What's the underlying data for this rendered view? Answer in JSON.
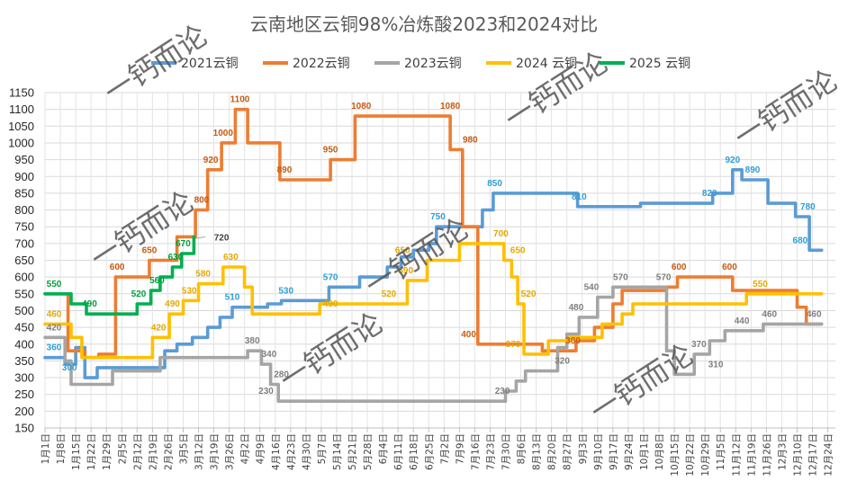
{
  "chart_data": {
    "type": "line",
    "title": "云南地区云铜98%冶炼酸2023和2024对比",
    "ylim": [
      150,
      1150
    ],
    "yticks": [
      150,
      200,
      250,
      300,
      350,
      400,
      450,
      500,
      550,
      600,
      650,
      700,
      750,
      800,
      850,
      900,
      950,
      1000,
      1050,
      1100,
      1150
    ],
    "grid": true,
    "legend_position": "top",
    "x_ticks": [
      "1月1日",
      "1月8日",
      "1月15日",
      "1月22日",
      "1月29日",
      "2月5日",
      "2月12日",
      "2月19日",
      "2月26日",
      "3月5日",
      "3月12日",
      "3月19日",
      "3月26日",
      "4月2日",
      "4月9日",
      "4月16日",
      "4月23日",
      "4月30日",
      "5月7日",
      "5月14日",
      "5月21日",
      "5月28日",
      "6月4日",
      "6月11日",
      "6月18日",
      "6月25日",
      "7月2日",
      "7月9日",
      "7月16日",
      "7月23日",
      "7月30日",
      "8月6日",
      "8月13日",
      "8月20日",
      "8月27日",
      "9月3日",
      "9月10日",
      "9月17日",
      "9月24日",
      "10月1日",
      "10月8日",
      "10月15日",
      "10月22日",
      "10月29日",
      "11月5日",
      "11月12日",
      "11月19日",
      "11月26日",
      "12月3日",
      "12月10日",
      "12月17日",
      "12月24日"
    ],
    "series": [
      {
        "name": "2021云铜",
        "color": "#5B9BD5",
        "points": [
          [
            0,
            360
          ],
          [
            1.3,
            360
          ],
          [
            1.3,
            340
          ],
          [
            2,
            340
          ],
          [
            2,
            390
          ],
          [
            2.6,
            390
          ],
          [
            2.6,
            300
          ],
          [
            3.4,
            300
          ],
          [
            3.4,
            330
          ],
          [
            7.8,
            330
          ],
          [
            7.8,
            380
          ],
          [
            8.6,
            380
          ],
          [
            8.6,
            400
          ],
          [
            9.6,
            400
          ],
          [
            9.6,
            420
          ],
          [
            10.6,
            420
          ],
          [
            10.6,
            450
          ],
          [
            11.4,
            450
          ],
          [
            11.4,
            480
          ],
          [
            12.2,
            480
          ],
          [
            12.2,
            510
          ],
          [
            14.5,
            510
          ],
          [
            14.5,
            520
          ],
          [
            15.4,
            520
          ],
          [
            15.4,
            530
          ],
          [
            18.5,
            530
          ],
          [
            18.5,
            570
          ],
          [
            20.5,
            570
          ],
          [
            20.5,
            600
          ],
          [
            22.3,
            600
          ],
          [
            22.3,
            630
          ],
          [
            23.2,
            630
          ],
          [
            23.2,
            660
          ],
          [
            24,
            660
          ],
          [
            24,
            680
          ],
          [
            25,
            680
          ],
          [
            25,
            700
          ],
          [
            25.5,
            700
          ],
          [
            25.5,
            750
          ],
          [
            28.5,
            750
          ],
          [
            28.5,
            800
          ],
          [
            29.2,
            800
          ],
          [
            29.2,
            850
          ],
          [
            34.7,
            850
          ],
          [
            34.7,
            810
          ],
          [
            38.8,
            810
          ],
          [
            38.8,
            820
          ],
          [
            43.5,
            820
          ],
          [
            43.5,
            850
          ],
          [
            44.8,
            850
          ],
          [
            44.8,
            920
          ],
          [
            45.4,
            920
          ],
          [
            45.4,
            890
          ],
          [
            47.1,
            890
          ],
          [
            47.1,
            820
          ],
          [
            48.9,
            820
          ],
          [
            48.9,
            780
          ],
          [
            49.8,
            780
          ],
          [
            49.8,
            680
          ],
          [
            50.6,
            680
          ]
        ],
        "labels": [
          {
            "i": 0,
            "v": 360
          },
          {
            "i": 1.6,
            "v": 300
          },
          {
            "i": 12.2,
            "v": 510
          },
          {
            "i": 15.7,
            "v": 530
          },
          {
            "i": 18.6,
            "v": 570
          },
          {
            "i": 25.6,
            "v": 750
          },
          {
            "i": 29.3,
            "v": 850
          },
          {
            "i": 34.8,
            "v": 810
          },
          {
            "i": 43.3,
            "v": 820
          },
          {
            "i": 44.8,
            "v": 920
          },
          {
            "i": 46.1,
            "v": 890
          },
          {
            "i": 49.7,
            "v": 780
          },
          {
            "i": 49.2,
            "v": 680
          }
        ]
      },
      {
        "name": "2022云铜",
        "color": "#ED7D31",
        "points": [
          [
            0,
            550
          ],
          [
            1.5,
            550
          ],
          [
            1.5,
            380
          ],
          [
            2.6,
            380
          ],
          [
            2.6,
            360
          ],
          [
            3.5,
            360
          ],
          [
            3.5,
            370
          ],
          [
            4.6,
            370
          ],
          [
            4.6,
            600
          ],
          [
            6.8,
            600
          ],
          [
            6.8,
            650
          ],
          [
            8.6,
            650
          ],
          [
            8.6,
            720
          ],
          [
            9.8,
            720
          ],
          [
            9.8,
            800
          ],
          [
            10.6,
            800
          ],
          [
            10.6,
            920
          ],
          [
            11.5,
            920
          ],
          [
            11.5,
            1000
          ],
          [
            12.4,
            1000
          ],
          [
            12.4,
            1100
          ],
          [
            13.2,
            1100
          ],
          [
            13.2,
            1000
          ],
          [
            15.3,
            1000
          ],
          [
            15.3,
            890
          ],
          [
            18.6,
            890
          ],
          [
            18.6,
            950
          ],
          [
            20.2,
            950
          ],
          [
            20.2,
            1080
          ],
          [
            26.4,
            1080
          ],
          [
            26.4,
            980
          ],
          [
            27.2,
            980
          ],
          [
            27.2,
            750
          ],
          [
            28.2,
            750
          ],
          [
            28.2,
            400
          ],
          [
            32.4,
            400
          ],
          [
            32.4,
            380
          ],
          [
            34.6,
            380
          ],
          [
            34.6,
            410
          ],
          [
            35.8,
            410
          ],
          [
            35.8,
            450
          ],
          [
            37,
            450
          ],
          [
            37,
            520
          ],
          [
            37.6,
            520
          ],
          [
            37.6,
            560
          ],
          [
            40.5,
            560
          ],
          [
            40.5,
            570
          ],
          [
            41.2,
            570
          ],
          [
            41.2,
            600
          ],
          [
            44.8,
            600
          ],
          [
            44.8,
            560
          ],
          [
            49,
            560
          ],
          [
            49,
            510
          ],
          [
            49.6,
            510
          ],
          [
            49.6,
            460
          ],
          [
            50.6,
            460
          ]
        ],
        "labels": [
          {
            "i": 4.7,
            "v": 600
          },
          {
            "i": 6.8,
            "v": 650
          },
          {
            "i": 10.2,
            "v": 800
          },
          {
            "i": 10.8,
            "v": 920
          },
          {
            "i": 11.6,
            "v": 1000
          },
          {
            "i": 12.7,
            "v": 1100
          },
          {
            "i": 15.6,
            "v": 890
          },
          {
            "i": 18.6,
            "v": 950
          },
          {
            "i": 20.6,
            "v": 1080
          },
          {
            "i": 26.4,
            "v": 1080
          },
          {
            "i": 27.7,
            "v": 980
          },
          {
            "i": 27.6,
            "v": 400
          },
          {
            "i": 34.4,
            "v": 380
          },
          {
            "i": 41.3,
            "v": 600
          },
          {
            "i": 44.6,
            "v": 600
          }
        ]
      },
      {
        "name": "2023云铜",
        "color": "#A5A5A5",
        "points": [
          [
            0,
            420
          ],
          [
            1.3,
            420
          ],
          [
            1.3,
            350
          ],
          [
            1.7,
            350
          ],
          [
            1.7,
            280
          ],
          [
            4.4,
            280
          ],
          [
            4.4,
            320
          ],
          [
            7.5,
            320
          ],
          [
            7.5,
            360
          ],
          [
            13.2,
            360
          ],
          [
            13.2,
            380
          ],
          [
            14.1,
            380
          ],
          [
            14.1,
            340
          ],
          [
            14.7,
            340
          ],
          [
            14.7,
            280
          ],
          [
            15.2,
            280
          ],
          [
            15.2,
            230
          ],
          [
            30,
            230
          ],
          [
            30,
            260
          ],
          [
            30.7,
            260
          ],
          [
            30.7,
            290
          ],
          [
            31.3,
            290
          ],
          [
            31.3,
            320
          ],
          [
            33.4,
            320
          ],
          [
            33.4,
            390
          ],
          [
            34,
            390
          ],
          [
            34,
            430
          ],
          [
            34.8,
            430
          ],
          [
            34.8,
            480
          ],
          [
            36,
            480
          ],
          [
            36,
            540
          ],
          [
            37,
            540
          ],
          [
            37,
            570
          ],
          [
            40.5,
            570
          ],
          [
            40.5,
            380
          ],
          [
            41,
            380
          ],
          [
            41,
            310
          ],
          [
            42.3,
            310
          ],
          [
            42.3,
            370
          ],
          [
            43.3,
            370
          ],
          [
            43.3,
            410
          ],
          [
            44.3,
            410
          ],
          [
            44.3,
            440
          ],
          [
            46.8,
            440
          ],
          [
            46.8,
            460
          ],
          [
            50.6,
            460
          ]
        ],
        "labels": [
          {
            "i": 0.4,
            "v": 420
          },
          {
            "i": 13.5,
            "v": 380
          },
          {
            "i": 14.6,
            "v": 340
          },
          {
            "i": 15.4,
            "v": 280
          },
          {
            "i": 14.4,
            "v": 230
          },
          {
            "i": 29.8,
            "v": 230
          },
          {
            "i": 33.7,
            "v": 320
          },
          {
            "i": 34.6,
            "v": 480
          },
          {
            "i": 35.6,
            "v": 540
          },
          {
            "i": 37.5,
            "v": 570
          },
          {
            "i": 40.3,
            "v": 570
          },
          {
            "i": 43.7,
            "v": 310
          },
          {
            "i": 42.6,
            "v": 370
          },
          {
            "i": 45.4,
            "v": 440
          },
          {
            "i": 47.2,
            "v": 460
          },
          {
            "i": 50.1,
            "v": 460
          }
        ]
      },
      {
        "name": "2024 云铜",
        "color": "#FFC000",
        "points": [
          [
            0,
            460
          ],
          [
            1.7,
            460
          ],
          [
            1.7,
            420
          ],
          [
            2.4,
            420
          ],
          [
            2.4,
            360
          ],
          [
            7,
            360
          ],
          [
            7,
            420
          ],
          [
            8.1,
            420
          ],
          [
            8.1,
            490
          ],
          [
            9,
            490
          ],
          [
            9,
            530
          ],
          [
            10,
            530
          ],
          [
            10,
            580
          ],
          [
            11.6,
            580
          ],
          [
            11.6,
            630
          ],
          [
            13,
            630
          ],
          [
            13,
            570
          ],
          [
            13.5,
            570
          ],
          [
            13.5,
            490
          ],
          [
            17.9,
            490
          ],
          [
            17.9,
            520
          ],
          [
            23.6,
            520
          ],
          [
            23.6,
            590
          ],
          [
            24.9,
            590
          ],
          [
            24.9,
            650
          ],
          [
            27,
            650
          ],
          [
            27,
            700
          ],
          [
            29.9,
            700
          ],
          [
            29.9,
            650
          ],
          [
            30.4,
            650
          ],
          [
            30.4,
            600
          ],
          [
            30.8,
            600
          ],
          [
            30.8,
            520
          ],
          [
            31.2,
            520
          ],
          [
            31.2,
            370
          ],
          [
            32.8,
            370
          ],
          [
            32.8,
            410
          ],
          [
            34.2,
            410
          ],
          [
            34.2,
            420
          ],
          [
            36.3,
            420
          ],
          [
            36.3,
            460
          ],
          [
            37.6,
            460
          ],
          [
            37.6,
            490
          ],
          [
            38.3,
            490
          ],
          [
            38.3,
            520
          ],
          [
            45.7,
            520
          ],
          [
            45.7,
            550
          ],
          [
            50.6,
            550
          ]
        ],
        "labels": [
          {
            "i": 0.2,
            "v": 460
          },
          {
            "i": 7.4,
            "v": 420
          },
          {
            "i": 8.3,
            "v": 490
          },
          {
            "i": 9.4,
            "v": 530
          },
          {
            "i": 10.3,
            "v": 580
          },
          {
            "i": 12.1,
            "v": 630
          },
          {
            "i": 18.6,
            "v": 490
          },
          {
            "i": 22.4,
            "v": 520
          },
          {
            "i": 23.5,
            "v": 590
          },
          {
            "i": 23.3,
            "v": 650
          },
          {
            "i": 29.7,
            "v": 700
          },
          {
            "i": 30.8,
            "v": 650
          },
          {
            "i": 31.5,
            "v": 520
          },
          {
            "i": 30.5,
            "v": 370
          },
          {
            "i": 46.6,
            "v": 550
          }
        ]
      },
      {
        "name": "2025 云铜",
        "color": "#00B050",
        "points": [
          [
            0,
            550
          ],
          [
            1.7,
            550
          ],
          [
            1.7,
            520
          ],
          [
            2.7,
            520
          ],
          [
            2.7,
            490
          ],
          [
            6,
            490
          ],
          [
            6,
            520
          ],
          [
            6.9,
            520
          ],
          [
            6.9,
            560
          ],
          [
            7.5,
            560
          ],
          [
            7.5,
            600
          ],
          [
            8.3,
            600
          ],
          [
            8.3,
            630
          ],
          [
            8.9,
            630
          ],
          [
            8.9,
            670
          ],
          [
            9.7,
            670
          ],
          [
            9.7,
            720
          ]
        ],
        "labels": [
          {
            "i": 0.3,
            "v": 550
          },
          {
            "i": 2.9,
            "v": 490
          },
          {
            "i": 6.1,
            "v": 520
          },
          {
            "i": 7.3,
            "v": 560
          },
          {
            "i": 8.5,
            "v": 630
          },
          {
            "i": 9.0,
            "v": 670
          }
        ]
      }
    ],
    "extra_labels": [
      {
        "series": "2025 云铜",
        "i": 11.5,
        "v": 720,
        "text": "720",
        "color": "#00B050",
        "text_color": "#404040"
      }
    ],
    "watermark": "一钙而论"
  }
}
